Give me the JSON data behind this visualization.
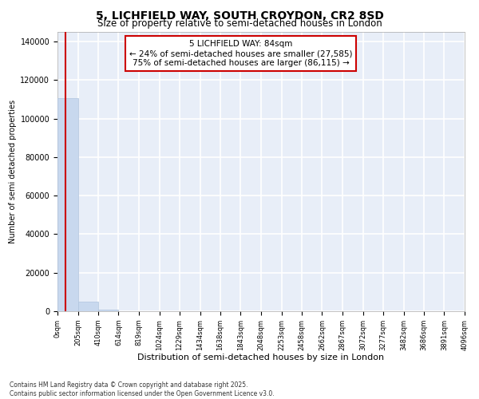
{
  "title": "5, LICHFIELD WAY, SOUTH CROYDON, CR2 8SD",
  "subtitle": "Size of property relative to semi-detached houses in London",
  "xlabel": "Distribution of semi-detached houses by size in London",
  "ylabel": "Number of semi detached properties",
  "property_size": 84,
  "annotation_line1": "5 LICHFIELD WAY: 84sqm",
  "annotation_line2": "← 24% of semi-detached houses are smaller (27,585)",
  "annotation_line3": "75% of semi-detached houses are larger (86,115) →",
  "bar_color": "#c8d8ee",
  "bar_edge_color": "#b0c4de",
  "vline_color": "#cc0000",
  "annotation_box_color": "#ffffff",
  "annotation_box_edge": "#cc0000",
  "background_color": "#ffffff",
  "plot_bg_color": "#e8eef8",
  "grid_color": "#ffffff",
  "ylim": [
    0,
    145000
  ],
  "yticks": [
    0,
    20000,
    40000,
    60000,
    80000,
    100000,
    120000,
    140000
  ],
  "bin_edges": [
    0,
    205,
    410,
    614,
    819,
    1024,
    1229,
    1434,
    1638,
    1843,
    2048,
    2253,
    2458,
    2662,
    2867,
    3072,
    3277,
    3482,
    3686,
    3891,
    4096
  ],
  "bin_counts": [
    110500,
    5000,
    800,
    200,
    80,
    40,
    20,
    10,
    8,
    5,
    4,
    3,
    2,
    2,
    1,
    1,
    1,
    0,
    0,
    0
  ],
  "footer_line1": "Contains HM Land Registry data © Crown copyright and database right 2025.",
  "footer_line2": "Contains public sector information licensed under the Open Government Licence v3.0."
}
